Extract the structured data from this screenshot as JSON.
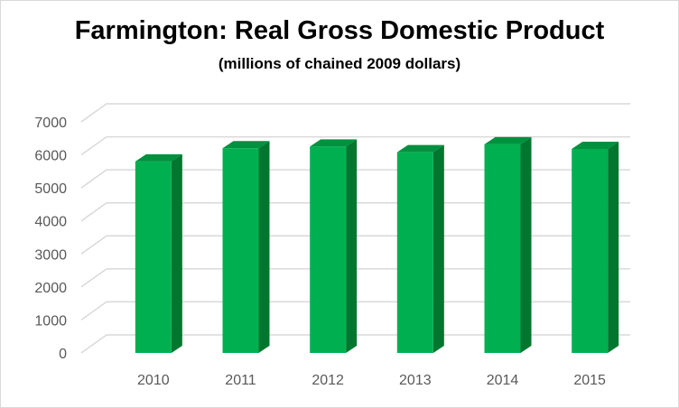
{
  "chart_data": {
    "type": "bar",
    "title": "Farmington: Real Gross Domestic Product",
    "subtitle": "(millions of chained 2009 dollars)",
    "categories": [
      "2010",
      "2011",
      "2012",
      "2013",
      "2014",
      "2015"
    ],
    "values": [
      5800,
      6200,
      6250,
      6080,
      6320,
      6180
    ],
    "ylim": [
      0,
      7000
    ],
    "yticks": [
      "0",
      "1000",
      "2000",
      "3000",
      "4000",
      "5000",
      "6000",
      "7000"
    ],
    "grid": true,
    "style": "3d-column",
    "colors": {
      "front": "#00b050",
      "side": "#00762f",
      "top": "#00913f",
      "grid": "#d9d9d9",
      "tick": "#595959"
    }
  }
}
